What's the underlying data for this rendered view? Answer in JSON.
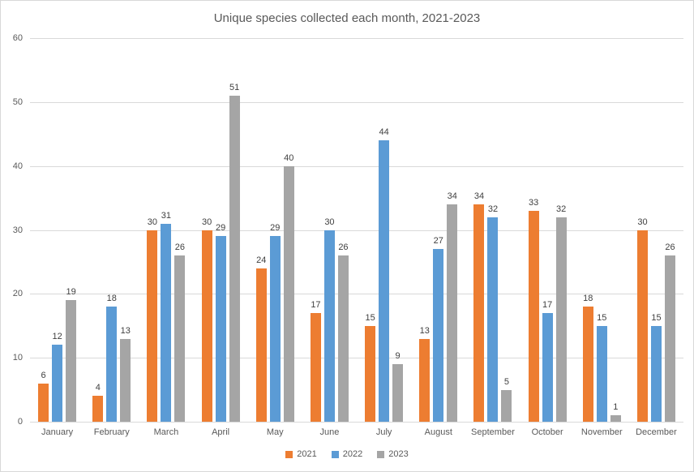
{
  "chart_data": {
    "type": "bar",
    "title": "Unique species collected each month, 2021-2023",
    "categories": [
      "January",
      "February",
      "March",
      "April",
      "May",
      "June",
      "July",
      "August",
      "September",
      "October",
      "November",
      "December"
    ],
    "series": [
      {
        "name": "2021",
        "color": "#ED7D31",
        "values": [
          6,
          4,
          30,
          30,
          24,
          17,
          15,
          13,
          34,
          33,
          18,
          30
        ]
      },
      {
        "name": "2022",
        "color": "#5B9BD5",
        "values": [
          12,
          18,
          31,
          29,
          29,
          30,
          44,
          27,
          32,
          17,
          15,
          15
        ]
      },
      {
        "name": "2023",
        "color": "#A5A5A5",
        "values": [
          19,
          13,
          26,
          51,
          40,
          26,
          9,
          34,
          5,
          32,
          1,
          26
        ]
      }
    ],
    "xlabel": "",
    "ylabel": "",
    "ylim": [
      0,
      60
    ],
    "yticks": [
      0,
      10,
      20,
      30,
      40,
      50,
      60
    ],
    "grid": "horizontal",
    "legend_position": "bottom",
    "data_labels": true
  },
  "styles": {
    "title_color": "#595959",
    "axis_label_color": "#595959",
    "data_label_color": "#404040",
    "gridline_color": "#d9d9d9",
    "background_color": "#ffffff",
    "border_color": "#d8d8d8"
  }
}
